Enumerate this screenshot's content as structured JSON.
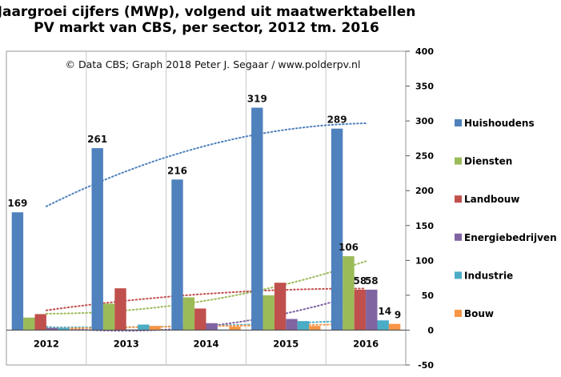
{
  "chart_data": {
    "type": "bar",
    "title_lines": [
      "Jaargroei cijfers (MWp), volgend uit maatwerktabellen",
      "PV markt van CBS, per sector, 2012 tm. 2016"
    ],
    "credit": "© Data CBS;  Graph  2018  Peter J. Segaar / www.polderpv.nl",
    "categories": [
      "2012",
      "2013",
      "2014",
      "2015",
      "2016"
    ],
    "ylim": [
      -50,
      400
    ],
    "yticks": [
      -50,
      0,
      50,
      100,
      150,
      200,
      250,
      300,
      350,
      400
    ],
    "grid": "vertical gridlines at category boundaries",
    "legend_position": "right",
    "series": [
      {
        "name": "Huishoudens",
        "color": "#4f81bd",
        "values": [
          169,
          261,
          216,
          319,
          289
        ],
        "labels": [
          "169",
          "261",
          "216",
          "319",
          "289"
        ]
      },
      {
        "name": "Diensten",
        "color": "#9bbb59",
        "values": [
          18,
          38,
          47,
          50,
          106
        ],
        "labels": [
          "",
          "",
          "",
          "",
          "106"
        ]
      },
      {
        "name": "Landbouw",
        "color": "#c0504d",
        "values": [
          23,
          60,
          31,
          68,
          58
        ],
        "labels": [
          "",
          "",
          "",
          "",
          "58"
        ]
      },
      {
        "name": "Energiebedrijven",
        "color": "#8064a2",
        "values": [
          3,
          1,
          10,
          16,
          58
        ],
        "labels": [
          "",
          "",
          "",
          "",
          "58"
        ]
      },
      {
        "name": "Industrie",
        "color": "#4bacc6",
        "values": [
          3,
          8,
          1,
          13,
          14
        ],
        "labels": [
          "",
          "",
          "",
          "",
          "14"
        ]
      },
      {
        "name": "Bouw",
        "color": "#f79646",
        "values": [
          1,
          6,
          5,
          6,
          9
        ],
        "labels": [
          "",
          "",
          "",
          "",
          "9"
        ]
      }
    ],
    "trendlines": "dotted trendline per series"
  }
}
